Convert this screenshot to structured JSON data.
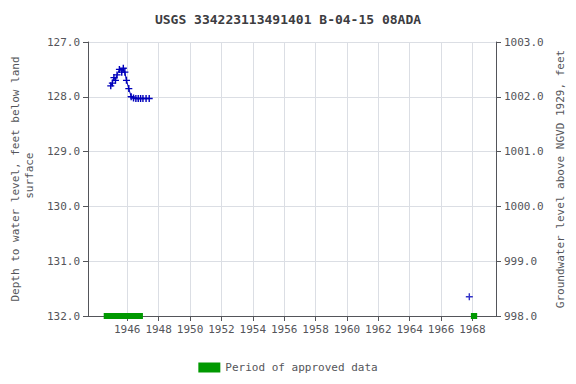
{
  "chart_data": {
    "type": "line",
    "title": "USGS 334223113491401 B-04-15 08ADA",
    "ylabel": "Depth to water level, feet below land\n surface",
    "y2label": "Groundwater level above NGVD 1929, feet",
    "xlim": [
      1943.5,
      1969.5
    ],
    "xticks": [
      1946,
      1948,
      1950,
      1952,
      1954,
      1956,
      1958,
      1960,
      1962,
      1964,
      1966,
      1968
    ],
    "ylim": [
      132.0,
      127.0
    ],
    "yticks": [
      {
        "value": 127.0,
        "label": "127.0"
      },
      {
        "value": 128.0,
        "label": "128.0"
      },
      {
        "value": 129.0,
        "label": "129.0"
      },
      {
        "value": 130.0,
        "label": "130.0"
      },
      {
        "value": 131.0,
        "label": "131.0"
      },
      {
        "value": 132.0,
        "label": "132.0"
      }
    ],
    "y2lim": [
      998.0,
      1003.0
    ],
    "y2ticks": [
      {
        "value": 1003.0,
        "label": "1003.0"
      },
      {
        "value": 1002.0,
        "label": "1002.0"
      },
      {
        "value": 1001.0,
        "label": "1001.0"
      },
      {
        "value": 1000.0,
        "label": "1000.0"
      },
      {
        "value": 999.0,
        "label": "999.0"
      },
      {
        "value": 998.0,
        "label": "998.0"
      }
    ],
    "grid": true,
    "legend": "bottom",
    "series": [
      {
        "type": "line",
        "color": "#0000bb",
        "marker": "+",
        "x": [
          1944.95,
          1945.05,
          1945.15,
          1945.25,
          1945.35,
          1945.5,
          1945.65,
          1945.75,
          1945.85,
          1945.95,
          1946.1,
          1946.25,
          1946.4,
          1946.55,
          1946.7,
          1946.85,
          1947.0,
          1947.2,
          1947.4
        ],
        "values": [
          127.8,
          127.75,
          127.65,
          127.7,
          127.6,
          127.5,
          127.55,
          127.48,
          127.55,
          127.7,
          127.85,
          128.0,
          128.02,
          128.03,
          128.03,
          128.03,
          128.03,
          128.03,
          128.03
        ]
      },
      {
        "type": "scatter",
        "color": "#0000bb",
        "marker": "+",
        "x": [
          1967.8
        ],
        "values": [
          131.65
        ]
      },
      {
        "name": "Period of approved data",
        "type": "span",
        "color": "#009900",
        "x": [
          [
            1944.5,
            1947.0
          ],
          [
            1967.9,
            1968.3
          ]
        ],
        "values": [
          132.0,
          132.0
        ]
      }
    ]
  }
}
